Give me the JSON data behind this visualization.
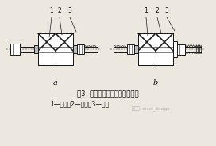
{
  "bg_color": "#ede8df",
  "title_text": "图3  高强度螺栓安装时垫圈设置",
  "subtitle_text": "1—螺栓；2—垫圈；3—螺母",
  "label_a": "a",
  "label_b": "b",
  "line_color": "#1a1a1a",
  "text_color": "#111111",
  "fig_w": 2.72,
  "fig_h": 1.84,
  "dpi": 100
}
